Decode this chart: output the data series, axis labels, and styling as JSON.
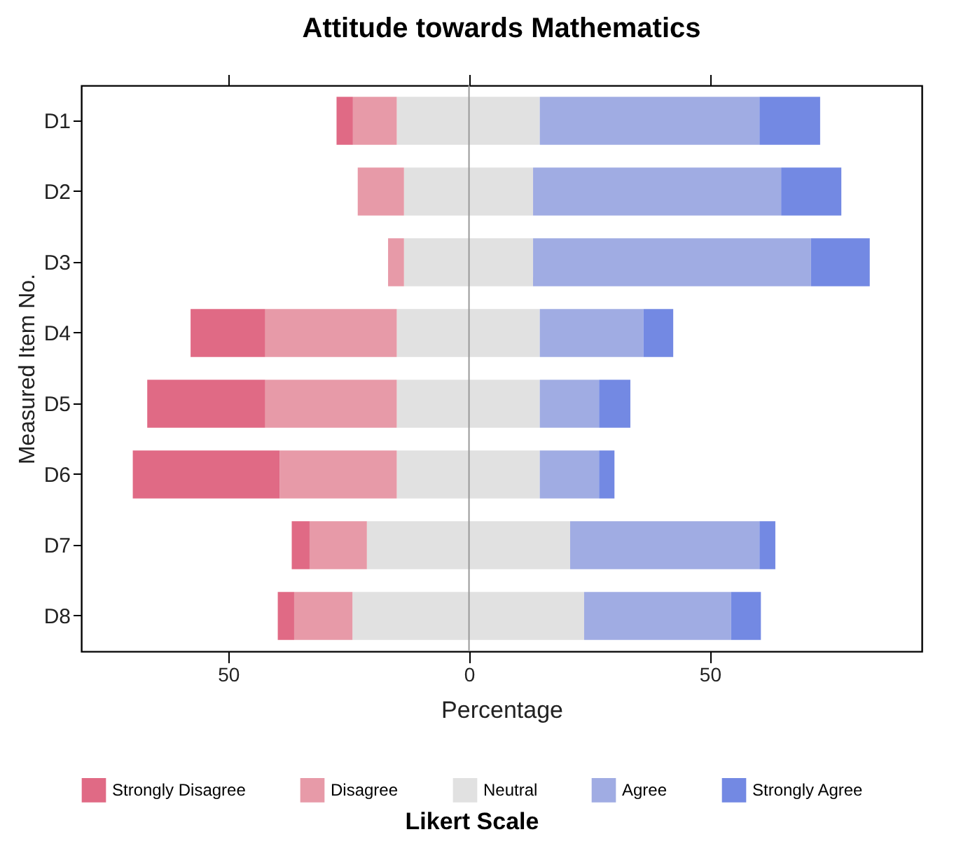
{
  "chart_data": {
    "type": "bar",
    "orientation": "horizontal",
    "stacked": true,
    "title": "Attitude towards Mathematics",
    "xlabel": "Percentage",
    "ylabel": "Measured Item No.",
    "legend_title": "Likert Scale",
    "legend": "bottom",
    "categories": [
      "D1",
      "D2",
      "D3",
      "D4",
      "D5",
      "D6",
      "D7",
      "D8"
    ],
    "series": [
      {
        "color": "#e1e1e1",
        "values": [
          -15.0,
          -13.5,
          -13.5,
          -15.0,
          -15.0,
          -15.0,
          -21.2,
          -24.2
        ]
      },
      {
        "name": "Neutral",
        "color": "#e1e1e1",
        "values": [
          14.7,
          13.3,
          13.3,
          14.7,
          14.7,
          14.7,
          21.0,
          23.9
        ]
      },
      {
        "name": "Disagree",
        "color": "#e79aa8",
        "values": [
          -9.1,
          -9.6,
          -3.3,
          -27.3,
          -27.3,
          -24.3,
          -11.9,
          -12.1
        ]
      },
      {
        "name": "Strongly Disagree",
        "color": "#e06a85",
        "values": [
          -3.4,
          0,
          0,
          -15.5,
          -24.5,
          -30.5,
          -3.7,
          -3.4
        ]
      },
      {
        "name": "Agree",
        "color": "#a0ace3",
        "values": [
          45.6,
          51.5,
          57.7,
          21.5,
          12.3,
          12.3,
          39.3,
          30.5
        ]
      },
      {
        "name": "Strongly Agree",
        "color": "#7389e3",
        "values": [
          12.6,
          12.5,
          12.2,
          6.2,
          6.5,
          3.2,
          3.3,
          6.2
        ]
      }
    ],
    "xlim": [
      -80.5,
      94
    ],
    "xticks": [
      {
        "value": -50,
        "label": "50"
      },
      0,
      50
    ],
    "ref_lines": [
      {
        "axis": "x",
        "value": 0,
        "color": "#999999"
      }
    ],
    "grid": false
  }
}
